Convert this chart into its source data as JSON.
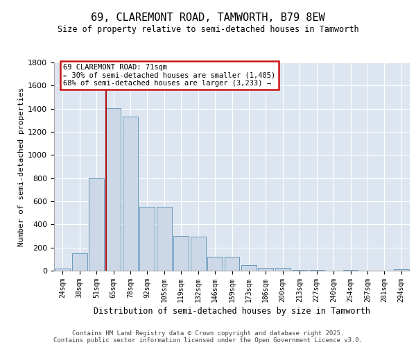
{
  "title": "69, CLAREMONT ROAD, TAMWORTH, B79 8EW",
  "subtitle": "Size of property relative to semi-detached houses in Tamworth",
  "xlabel": "Distribution of semi-detached houses by size in Tamworth",
  "ylabel": "Number of semi-detached properties",
  "categories": [
    "24sqm",
    "38sqm",
    "51sqm",
    "65sqm",
    "78sqm",
    "92sqm",
    "105sqm",
    "119sqm",
    "132sqm",
    "146sqm",
    "159sqm",
    "173sqm",
    "186sqm",
    "200sqm",
    "213sqm",
    "227sqm",
    "240sqm",
    "254sqm",
    "267sqm",
    "281sqm",
    "294sqm"
  ],
  "values": [
    20,
    150,
    800,
    1405,
    1330,
    550,
    550,
    300,
    295,
    120,
    120,
    50,
    25,
    25,
    5,
    5,
    0,
    5,
    0,
    0,
    10
  ],
  "bar_color": "#ccd8e8",
  "bar_edge_color": "#6699bb",
  "vline_color": "#aa1111",
  "vline_bin_index": 3,
  "annotation_text": "69 CLAREMONT ROAD: 71sqm\n← 30% of semi-detached houses are smaller (1,405)\n68% of semi-detached houses are larger (3,233) →",
  "ann_box_facecolor": "white",
  "ann_box_edgecolor": "#cc1111",
  "background_color": "#dde6f0",
  "ylim": [
    0,
    1800
  ],
  "yticks": [
    0,
    200,
    400,
    600,
    800,
    1000,
    1200,
    1400,
    1600,
    1800
  ],
  "footer_text": "Contains HM Land Registry data © Crown copyright and database right 2025.\nContains public sector information licensed under the Open Government Licence v3.0."
}
